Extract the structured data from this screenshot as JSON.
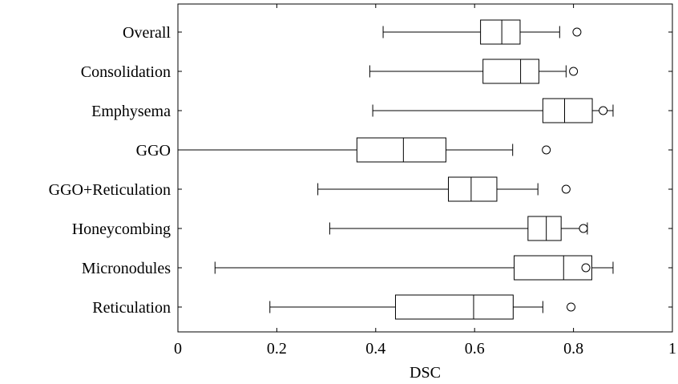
{
  "chart_data": {
    "type": "boxplot",
    "orientation": "horizontal",
    "title": "",
    "xlabel": "DSC",
    "ylabel": "",
    "xlim": [
      0,
      1
    ],
    "xticks": [
      0,
      0.2,
      0.4,
      0.6,
      0.8,
      1
    ],
    "xtick_labels": [
      "0",
      "0.2",
      "0.4",
      "0.6",
      "0.8",
      "1"
    ],
    "grid": false,
    "categories": [
      "Overall",
      "Consolidation",
      "Emphysema",
      "GGO",
      "GGO+Reticulation",
      "Honeycombing",
      "Micronodules",
      "Reticulation"
    ],
    "boxes": [
      {
        "category": "Overall",
        "whisker_low": 0.415,
        "q1": 0.612,
        "median": 0.655,
        "q3": 0.692,
        "whisker_high": 0.772,
        "outliers": [
          0.807
        ]
      },
      {
        "category": "Consolidation",
        "whisker_low": 0.388,
        "q1": 0.617,
        "median": 0.693,
        "q3": 0.73,
        "whisker_high": 0.785,
        "outliers": [
          0.8
        ]
      },
      {
        "category": "Emphysema",
        "whisker_low": 0.394,
        "q1": 0.738,
        "median": 0.782,
        "q3": 0.838,
        "whisker_high": 0.88,
        "outliers": [
          0.86
        ]
      },
      {
        "category": "GGO",
        "whisker_low": 0.0,
        "q1": 0.362,
        "median": 0.456,
        "q3": 0.542,
        "whisker_high": 0.677,
        "outliers": [
          0.745
        ]
      },
      {
        "category": "GGO+Reticulation",
        "whisker_low": 0.283,
        "q1": 0.547,
        "median": 0.593,
        "q3": 0.645,
        "whisker_high": 0.728,
        "outliers": [
          0.785
        ]
      },
      {
        "category": "Honeycombing",
        "whisker_low": 0.307,
        "q1": 0.708,
        "median": 0.745,
        "q3": 0.775,
        "whisker_high": 0.828,
        "outliers": [
          0.82
        ]
      },
      {
        "category": "Micronodules",
        "whisker_low": 0.075,
        "q1": 0.68,
        "median": 0.78,
        "q3": 0.837,
        "whisker_high": 0.88,
        "outliers": [
          0.825
        ]
      },
      {
        "category": "Reticulation",
        "whisker_low": 0.186,
        "q1": 0.44,
        "median": 0.598,
        "q3": 0.678,
        "whisker_high": 0.738,
        "outliers": [
          0.795
        ]
      }
    ]
  }
}
